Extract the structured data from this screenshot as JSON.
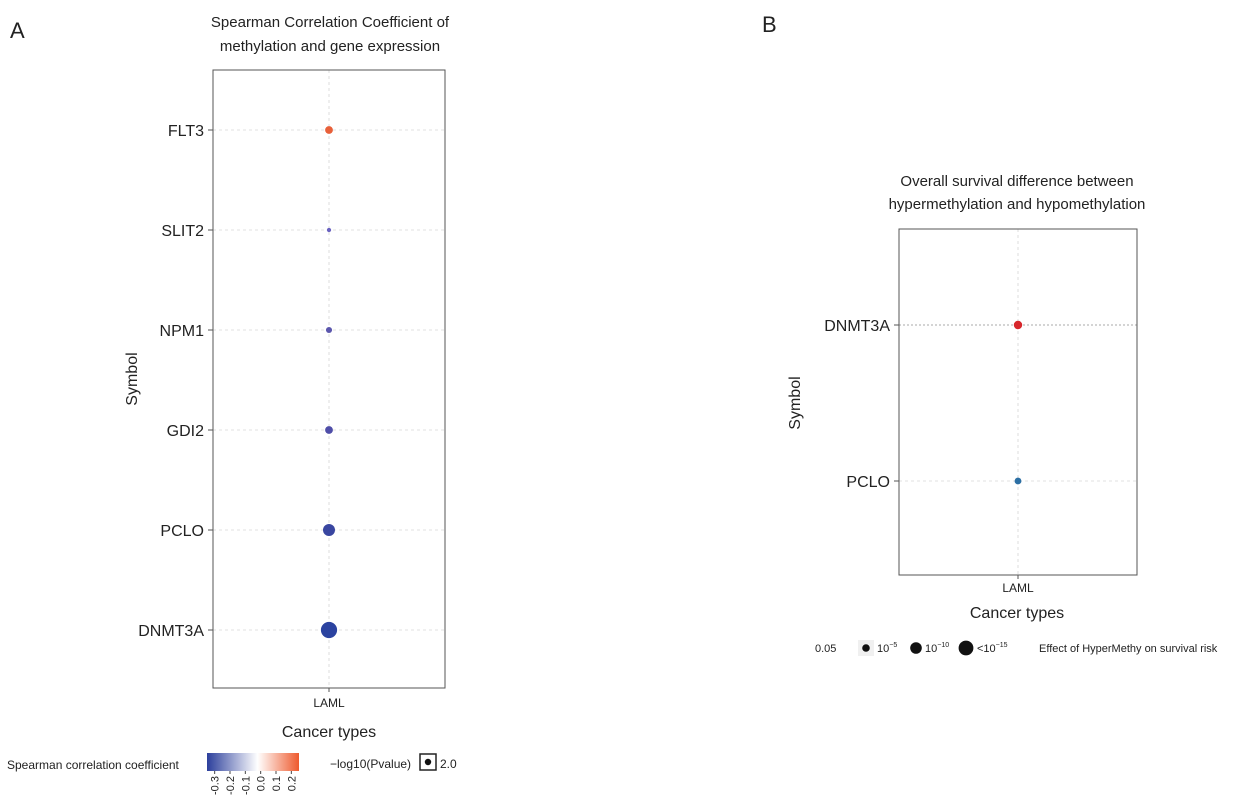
{
  "panels": {
    "a_letter": "A",
    "b_letter": "B"
  },
  "chart_data": [
    {
      "type": "scatter",
      "title_line1": "Spearman Correlation Coefficient of",
      "title_line2": "methylation and gene expression",
      "xlabel": "Cancer types",
      "ylabel": "Symbol",
      "x_categories": [
        "LAML"
      ],
      "y_categories": [
        "FLT3",
        "SLIT2",
        "NPM1",
        "GDI2",
        "PCLO",
        "DNMT3A"
      ],
      "points": [
        {
          "x": "LAML",
          "y": "FLT3",
          "correlation": 0.22,
          "neglog10p": 2.0,
          "color": "#e8603a"
        },
        {
          "x": "LAML",
          "y": "SLIT2",
          "correlation": -0.18,
          "neglog10p": 0.3,
          "color": "#6a62c0"
        },
        {
          "x": "LAML",
          "y": "NPM1",
          "correlation": -0.2,
          "neglog10p": 1.2,
          "color": "#5b56ad"
        },
        {
          "x": "LAML",
          "y": "GDI2",
          "correlation": -0.22,
          "neglog10p": 2.0,
          "color": "#4f4ea8"
        },
        {
          "x": "LAML",
          "y": "PCLO",
          "correlation": -0.28,
          "neglog10p": 4.0,
          "color": "#3946a0"
        },
        {
          "x": "LAML",
          "y": "DNMT3A",
          "correlation": -0.33,
          "neglog10p": 6.0,
          "color": "#2b43a0"
        }
      ],
      "legend": {
        "color_title": "Spearman correlation coefficient",
        "color_ticks": [
          "-0.3",
          "-0.2",
          "-0.1",
          "0.0",
          "0.1",
          "0.2"
        ],
        "color_low": "#2c3f9c",
        "color_mid": "#ffffff",
        "color_high": "#ee5a2e",
        "size_title": "−log10(Pvalue)",
        "size_value": "2.0"
      }
    },
    {
      "type": "scatter",
      "title_line1": "Overall survival difference between",
      "title_line2": "hypermethylation and hypomethylation",
      "xlabel": "Cancer types",
      "ylabel": "Symbol",
      "x_categories": [
        "LAML"
      ],
      "y_categories": [
        "DNMT3A",
        "PCLO"
      ],
      "points": [
        {
          "x": "LAML",
          "y": "DNMT3A",
          "pvalue_level": "0.05",
          "color": "#d7262b"
        },
        {
          "x": "LAML",
          "y": "PCLO",
          "pvalue_level": "0.05",
          "color": "#2c6fa4"
        }
      ],
      "legend": {
        "first_label": "0.05",
        "size_labels": [
          {
            "base": "10",
            "exp": "−5"
          },
          {
            "base": "10",
            "exp": "−10"
          },
          {
            "base": "<10",
            "exp": "−15"
          }
        ],
        "effect_title": "Effect of HyperMethy on survival risk"
      }
    }
  ]
}
